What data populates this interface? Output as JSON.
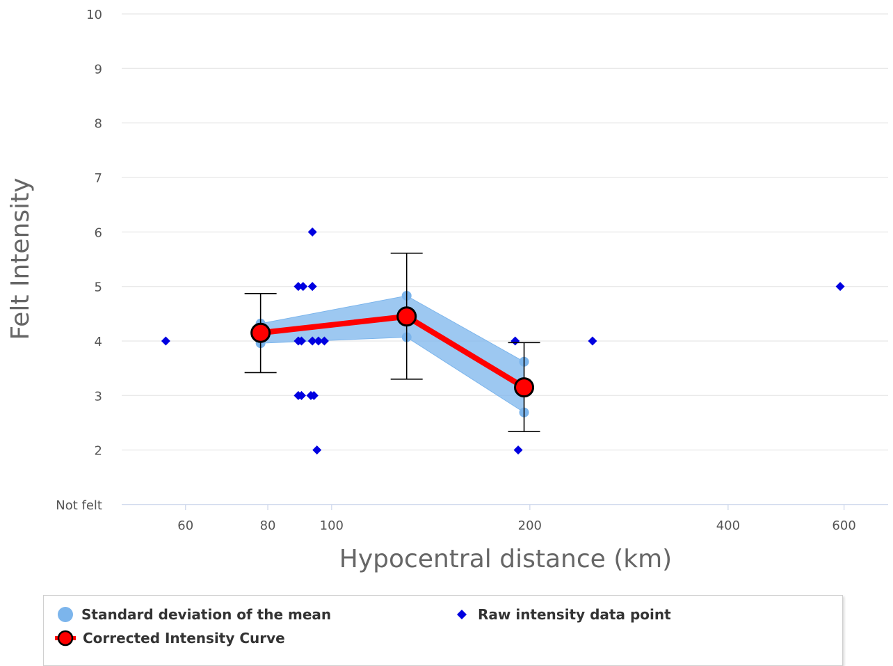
{
  "chart_data": {
    "type": "line",
    "xlabel": "Hypocentral distance (km)",
    "ylabel": "Felt Intensity",
    "x_scale": "log",
    "xlim": [
      48,
      700
    ],
    "ylim": [
      1,
      10
    ],
    "x_ticks": [
      {
        "value": 60,
        "label": "60"
      },
      {
        "value": 80,
        "label": "80"
      },
      {
        "value": 100,
        "label": "100"
      },
      {
        "value": 200,
        "label": "200"
      },
      {
        "value": 400,
        "label": "400"
      },
      {
        "value": 600,
        "label": "600"
      }
    ],
    "y_ticks": [
      {
        "value": 1,
        "label": "Not felt"
      },
      {
        "value": 2,
        "label": "2"
      },
      {
        "value": 3,
        "label": "3"
      },
      {
        "value": 4,
        "label": "4"
      },
      {
        "value": 5,
        "label": "5"
      },
      {
        "value": 6,
        "label": "6"
      },
      {
        "value": 7,
        "label": "7"
      },
      {
        "value": 8,
        "label": "8"
      },
      {
        "value": 9,
        "label": "9"
      },
      {
        "value": 10,
        "label": "10"
      }
    ],
    "grid": true,
    "legend_position": "bottom",
    "series": [
      {
        "name": "Standard deviation of the mean",
        "type": "arearange",
        "color": "#7cb5ec",
        "points": [
          {
            "x": 78,
            "low": 3.96,
            "high": 4.32
          },
          {
            "x": 130,
            "low": 4.07,
            "high": 4.83
          },
          {
            "x": 196,
            "low": 2.69,
            "high": 3.62
          }
        ]
      },
      {
        "name": "Corrected Intensity Curve",
        "type": "line",
        "color": "#ff0000",
        "points": [
          {
            "x": 78,
            "y": 4.15,
            "err_low": 3.42,
            "err_high": 4.87
          },
          {
            "x": 130,
            "y": 4.45,
            "err_low": 3.3,
            "err_high": 5.61
          },
          {
            "x": 196,
            "y": 3.15,
            "err_low": 2.34,
            "err_high": 3.97
          }
        ]
      },
      {
        "name": "Raw intensity data point",
        "type": "scatter",
        "color": "#0000e0",
        "points": [
          {
            "x": 56,
            "y": 4
          },
          {
            "x": 89,
            "y": 5
          },
          {
            "x": 90.5,
            "y": 5
          },
          {
            "x": 93.5,
            "y": 5
          },
          {
            "x": 93.5,
            "y": 6
          },
          {
            "x": 89,
            "y": 4
          },
          {
            "x": 90,
            "y": 4
          },
          {
            "x": 93.5,
            "y": 4
          },
          {
            "x": 95.5,
            "y": 4
          },
          {
            "x": 97.5,
            "y": 4
          },
          {
            "x": 89,
            "y": 3
          },
          {
            "x": 90,
            "y": 3
          },
          {
            "x": 93,
            "y": 3
          },
          {
            "x": 94,
            "y": 3
          },
          {
            "x": 95,
            "y": 2
          },
          {
            "x": 190,
            "y": 4
          },
          {
            "x": 192,
            "y": 2
          },
          {
            "x": 249,
            "y": 4
          },
          {
            "x": 592,
            "y": 5
          }
        ]
      }
    ]
  },
  "legend": {
    "items": [
      {
        "label": "Standard deviation of the mean",
        "color": "#7cb5ec"
      },
      {
        "label": "Raw intensity data point",
        "color": "#0000e0"
      },
      {
        "label": "Corrected Intensity Curve",
        "color": "#ff0000"
      }
    ]
  }
}
